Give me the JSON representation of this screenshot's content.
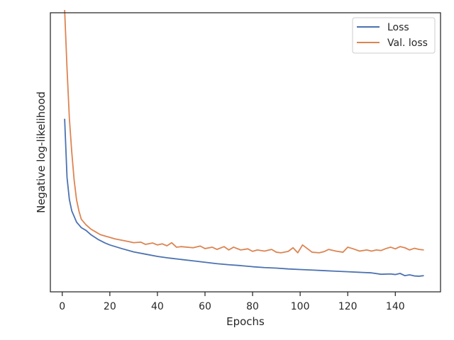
{
  "chart_data": {
    "type": "line",
    "xlabel": "Epochs",
    "ylabel": "Negative log-likelihood",
    "xlim": [
      -5,
      159
    ],
    "ylim": [
      0.0,
      1.0
    ],
    "yticks_visible": false,
    "xticks": [
      0,
      20,
      40,
      60,
      80,
      100,
      120,
      140
    ],
    "grid": false,
    "legend_position": "top-right",
    "series": [
      {
        "name": "Loss",
        "color": "#4c72b0",
        "points": [
          [
            1,
            0.62
          ],
          [
            2,
            0.41
          ],
          [
            3,
            0.33
          ],
          [
            4,
            0.29
          ],
          [
            5,
            0.27
          ],
          [
            6,
            0.25
          ],
          [
            7,
            0.24
          ],
          [
            8,
            0.23
          ],
          [
            10,
            0.22
          ],
          [
            12,
            0.205
          ],
          [
            15,
            0.188
          ],
          [
            18,
            0.175
          ],
          [
            20,
            0.168
          ],
          [
            25,
            0.155
          ],
          [
            30,
            0.143
          ],
          [
            35,
            0.135
          ],
          [
            40,
            0.127
          ],
          [
            45,
            0.121
          ],
          [
            50,
            0.116
          ],
          [
            55,
            0.111
          ],
          [
            60,
            0.106
          ],
          [
            65,
            0.101
          ],
          [
            70,
            0.097
          ],
          [
            75,
            0.094
          ],
          [
            80,
            0.09
          ],
          [
            85,
            0.087
          ],
          [
            90,
            0.085
          ],
          [
            95,
            0.082
          ],
          [
            100,
            0.08
          ],
          [
            105,
            0.078
          ],
          [
            110,
            0.076
          ],
          [
            115,
            0.074
          ],
          [
            120,
            0.072
          ],
          [
            125,
            0.07
          ],
          [
            130,
            0.068
          ],
          [
            134,
            0.063
          ],
          [
            138,
            0.064
          ],
          [
            140,
            0.062
          ],
          [
            142,
            0.066
          ],
          [
            144,
            0.058
          ],
          [
            146,
            0.061
          ],
          [
            148,
            0.057
          ],
          [
            150,
            0.056
          ],
          [
            152,
            0.058
          ]
        ]
      },
      {
        "name": "Val. loss",
        "color": "#dd8452",
        "points": [
          [
            1,
            1.01
          ],
          [
            2,
            0.8
          ],
          [
            3,
            0.62
          ],
          [
            4,
            0.5
          ],
          [
            5,
            0.4
          ],
          [
            6,
            0.33
          ],
          [
            7,
            0.29
          ],
          [
            8,
            0.26
          ],
          [
            10,
            0.24
          ],
          [
            12,
            0.225
          ],
          [
            14,
            0.215
          ],
          [
            16,
            0.205
          ],
          [
            18,
            0.2
          ],
          [
            20,
            0.195
          ],
          [
            22,
            0.19
          ],
          [
            25,
            0.185
          ],
          [
            28,
            0.18
          ],
          [
            30,
            0.176
          ],
          [
            33,
            0.178
          ],
          [
            35,
            0.17
          ],
          [
            38,
            0.175
          ],
          [
            40,
            0.168
          ],
          [
            42,
            0.172
          ],
          [
            44,
            0.165
          ],
          [
            46,
            0.176
          ],
          [
            48,
            0.16
          ],
          [
            50,
            0.162
          ],
          [
            55,
            0.158
          ],
          [
            58,
            0.164
          ],
          [
            60,
            0.155
          ],
          [
            63,
            0.16
          ],
          [
            65,
            0.152
          ],
          [
            68,
            0.162
          ],
          [
            70,
            0.15
          ],
          [
            72,
            0.16
          ],
          [
            75,
            0.15
          ],
          [
            78,
            0.154
          ],
          [
            80,
            0.145
          ],
          [
            82,
            0.15
          ],
          [
            85,
            0.146
          ],
          [
            88,
            0.152
          ],
          [
            90,
            0.142
          ],
          [
            92,
            0.14
          ],
          [
            95,
            0.145
          ],
          [
            97,
            0.158
          ],
          [
            99,
            0.14
          ],
          [
            101,
            0.168
          ],
          [
            103,
            0.155
          ],
          [
            105,
            0.142
          ],
          [
            108,
            0.14
          ],
          [
            110,
            0.144
          ],
          [
            112,
            0.152
          ],
          [
            115,
            0.146
          ],
          [
            118,
            0.142
          ],
          [
            120,
            0.16
          ],
          [
            122,
            0.155
          ],
          [
            125,
            0.146
          ],
          [
            128,
            0.15
          ],
          [
            130,
            0.146
          ],
          [
            132,
            0.15
          ],
          [
            134,
            0.148
          ],
          [
            136,
            0.155
          ],
          [
            138,
            0.16
          ],
          [
            140,
            0.154
          ],
          [
            142,
            0.162
          ],
          [
            144,
            0.158
          ],
          [
            146,
            0.15
          ],
          [
            148,
            0.156
          ],
          [
            150,
            0.152
          ],
          [
            152,
            0.15
          ]
        ]
      }
    ]
  }
}
